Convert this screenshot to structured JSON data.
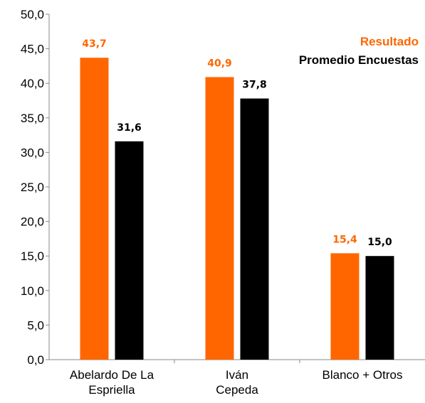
{
  "chart_data": {
    "type": "bar",
    "categories": [
      [
        "Abelardo De La",
        "Espriella"
      ],
      [
        "Iván",
        "Cepeda"
      ],
      [
        "Blanco + Otros"
      ]
    ],
    "series": [
      {
        "name": "Resultado",
        "color": "#ff6600",
        "values": [
          43.7,
          40.9,
          15.4
        ],
        "labels": [
          "43,7",
          "40,9",
          "15,4"
        ]
      },
      {
        "name": "Promedio Encuestas",
        "color": "#000000",
        "values": [
          31.6,
          37.8,
          15.0
        ],
        "labels": [
          "31,6",
          "37,8",
          "15,0"
        ]
      }
    ],
    "ylim": [
      0,
      50
    ],
    "yticks": [
      0,
      5,
      10,
      15,
      20,
      25,
      30,
      35,
      40,
      45,
      50
    ],
    "ytick_labels": [
      "0,0",
      "5,0",
      "10,0",
      "15,0",
      "20,0",
      "25,0",
      "30,0",
      "35,0",
      "40,0",
      "45,0",
      "50,0"
    ],
    "grid": false,
    "legend_position": "top-right"
  }
}
